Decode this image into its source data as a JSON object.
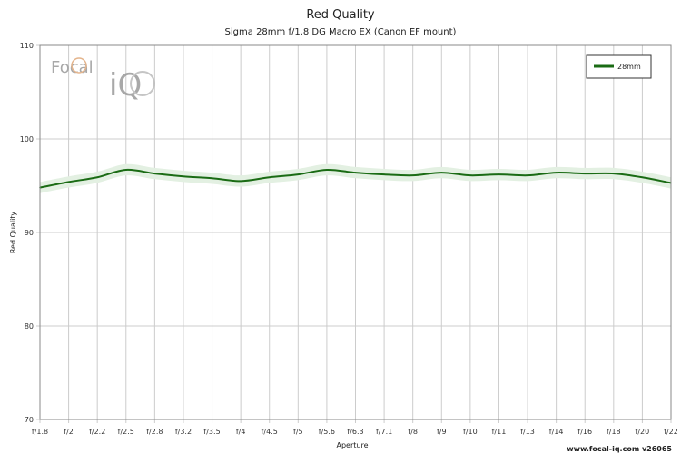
{
  "chart_data": {
    "type": "line",
    "title": "Red Quality",
    "subtitle": "Sigma 28mm f/1.8 DG Macro EX (Canon EF mount)",
    "xlabel": "Aperture",
    "ylabel": "Red Quality",
    "ylim": [
      70,
      110
    ],
    "yticks": [
      70,
      80,
      90,
      100,
      110
    ],
    "categories": [
      "f/1.8",
      "f/2",
      "f/2.2",
      "f/2.5",
      "f/2.8",
      "f/3.2",
      "f/3.5",
      "f/4",
      "f/4.5",
      "f/5",
      "f/5.6",
      "f/6.3",
      "f/7.1",
      "f/8",
      "f/9",
      "f/10",
      "f/11",
      "f/13",
      "f/14",
      "f/16",
      "f/18",
      "f/20",
      "f/22"
    ],
    "series": [
      {
        "name": "28mm",
        "color": "#1a6b14",
        "band_color": "#e3f0e2",
        "values": [
          94.8,
          95.4,
          95.9,
          96.7,
          96.3,
          96.0,
          95.8,
          95.5,
          95.9,
          96.2,
          96.7,
          96.4,
          96.2,
          96.1,
          96.4,
          96.1,
          96.2,
          96.1,
          96.4,
          96.3,
          96.3,
          95.9,
          95.3
        ],
        "band": 0.6
      }
    ],
    "legend_position": "top-right",
    "grid": true
  },
  "branding": {
    "logo_text_1": "Focal",
    "logo_text_2": "iQ",
    "footer": "www.focal-iq.com v26065"
  }
}
